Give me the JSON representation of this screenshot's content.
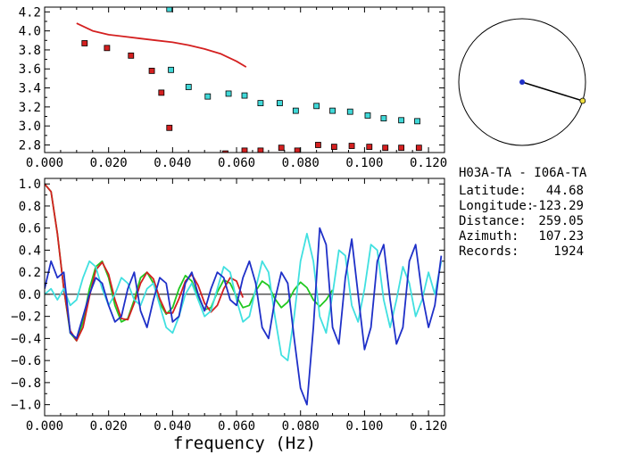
{
  "chart_data": [
    {
      "type": "scatter",
      "title": "",
      "xlabel": "",
      "ylabel": "",
      "xlim": [
        0,
        0.125
      ],
      "ylim": [
        2.72,
        4.25
      ],
      "grid": false,
      "x_ticks": [
        "0.000",
        "0.020",
        "0.040",
        "0.060",
        "0.080",
        "0.100",
        "0.120"
      ],
      "y_ticks": [
        "2.8",
        "3.0",
        "3.2",
        "3.4",
        "3.6",
        "3.8",
        "4.0",
        "4.2"
      ],
      "x_tick_values": [
        0,
        0.02,
        0.04,
        0.06,
        0.08,
        0.1,
        0.12
      ],
      "y_tick_values": [
        2.8,
        3.0,
        3.2,
        3.4,
        3.6,
        3.8,
        4.0,
        4.2
      ],
      "series": [
        {
          "color": "#d42020",
          "kind": "line",
          "x": [
            0.01,
            0.015,
            0.02,
            0.025,
            0.03,
            0.035,
            0.04,
            0.045,
            0.05,
            0.055,
            0.06,
            0.063
          ],
          "y": [
            4.08,
            4.0,
            3.96,
            3.94,
            3.92,
            3.9,
            3.88,
            3.85,
            3.81,
            3.76,
            3.68,
            3.62
          ]
        },
        {
          "color": "#d42020",
          "kind": "squares",
          "x": [
            0.0125,
            0.0195,
            0.027,
            0.0335,
            0.0365,
            0.039,
            0.0565,
            0.0625,
            0.0675,
            0.074,
            0.079,
            0.0855,
            0.0905,
            0.096,
            0.1015,
            0.1065,
            0.1115,
            0.117
          ],
          "y": [
            3.87,
            3.82,
            3.74,
            3.58,
            3.35,
            2.98,
            2.71,
            2.74,
            2.74,
            2.77,
            2.74,
            2.8,
            2.78,
            2.79,
            2.78,
            2.77,
            2.77,
            2.77
          ]
        },
        {
          "color": "#40d8d8",
          "kind": "squares",
          "x": [
            0.039,
            0.0395,
            0.045,
            0.051,
            0.0575,
            0.0625,
            0.0675,
            0.0735,
            0.0785,
            0.085,
            0.09,
            0.0955,
            0.101,
            0.106,
            0.1115,
            0.1165
          ],
          "y": [
            4.23,
            3.59,
            3.41,
            3.31,
            3.34,
            3.32,
            3.24,
            3.24,
            3.16,
            3.21,
            3.16,
            3.15,
            3.11,
            3.08,
            3.06,
            3.05
          ]
        }
      ]
    },
    {
      "type": "line",
      "title": "",
      "xlabel": "frequency (Hz)",
      "ylabel": "",
      "xlim": [
        0,
        0.125
      ],
      "ylim": [
        -1.1,
        1.05
      ],
      "grid": false,
      "x_ticks": [
        "0.000",
        "0.020",
        "0.040",
        "0.060",
        "0.080",
        "0.100",
        "0.120"
      ],
      "y_ticks": [
        "1.0",
        "0.8",
        "0.6",
        "0.4",
        "0.2",
        "0.0",
        "−0.2",
        "−0.4",
        "−0.6",
        "−0.8",
        "−1.0"
      ],
      "x_tick_values": [
        0,
        0.02,
        0.04,
        0.06,
        0.08,
        0.1,
        0.12
      ],
      "y_tick_values": [
        1.0,
        0.8,
        0.6,
        0.4,
        0.2,
        0.0,
        -0.2,
        -0.4,
        -0.6,
        -0.8,
        -1.0
      ],
      "zero_line": true,
      "series": [
        {
          "color": "#20c820",
          "x": [
            0,
            0.002,
            0.004,
            0.006,
            0.008,
            0.01,
            0.012,
            0.014,
            0.016,
            0.018,
            0.02,
            0.022,
            0.024,
            0.026,
            0.028,
            0.03,
            0.032,
            0.034,
            0.036,
            0.038,
            0.04,
            0.042,
            0.044,
            0.046,
            0.048,
            0.05,
            0.052,
            0.054,
            0.056,
            0.058,
            0.06,
            0.062,
            0.064,
            0.066,
            0.068,
            0.07,
            0.072,
            0.074,
            0.076,
            0.078,
            0.08,
            0.082,
            0.084,
            0.086,
            0.088,
            0.09
          ],
          "y": [
            1.0,
            0.93,
            0.55,
            0.05,
            -0.35,
            -0.42,
            -0.25,
            0.05,
            0.25,
            0.3,
            0.15,
            -0.1,
            -0.25,
            -0.22,
            -0.05,
            0.15,
            0.2,
            0.1,
            -0.08,
            -0.18,
            -0.12,
            0.05,
            0.17,
            0.12,
            -0.02,
            -0.14,
            -0.12,
            0.02,
            0.13,
            0.1,
            -0.02,
            -0.12,
            -0.1,
            0.03,
            0.12,
            0.08,
            -0.04,
            -0.12,
            -0.07,
            0.04,
            0.11,
            0.06,
            -0.05,
            -0.11,
            -0.05,
            0.04
          ]
        },
        {
          "color": "#d42020",
          "x": [
            0,
            0.002,
            0.004,
            0.006,
            0.008,
            0.01,
            0.012,
            0.014,
            0.016,
            0.018,
            0.02,
            0.022,
            0.024,
            0.026,
            0.028,
            0.03,
            0.032,
            0.034,
            0.036,
            0.038,
            0.04,
            0.042,
            0.044,
            0.046,
            0.048,
            0.05,
            0.052,
            0.054,
            0.056,
            0.058,
            0.06,
            0.062
          ],
          "y": [
            1.0,
            0.93,
            0.55,
            0.05,
            -0.33,
            -0.42,
            -0.3,
            -0.02,
            0.22,
            0.29,
            0.18,
            -0.05,
            -0.22,
            -0.23,
            -0.08,
            0.1,
            0.2,
            0.14,
            -0.04,
            -0.17,
            -0.17,
            -0.04,
            0.12,
            0.18,
            0.08,
            -0.08,
            -0.16,
            -0.1,
            0.05,
            0.15,
            0.12,
            -0.03
          ]
        },
        {
          "color": "#40e0e0",
          "x": [
            0,
            0.002,
            0.004,
            0.006,
            0.008,
            0.01,
            0.012,
            0.014,
            0.016,
            0.018,
            0.02,
            0.022,
            0.024,
            0.026,
            0.028,
            0.03,
            0.032,
            0.034,
            0.036,
            0.038,
            0.04,
            0.042,
            0.044,
            0.046,
            0.048,
            0.05,
            0.052,
            0.054,
            0.056,
            0.058,
            0.06,
            0.062,
            0.064,
            0.066,
            0.068,
            0.07,
            0.072,
            0.074,
            0.076,
            0.078,
            0.08,
            0.082,
            0.084,
            0.086,
            0.088,
            0.09,
            0.092,
            0.094,
            0.096,
            0.098,
            0.1,
            0.102,
            0.104,
            0.106,
            0.108,
            0.11,
            0.112,
            0.114,
            0.116,
            0.118,
            0.12,
            0.122,
            0.124
          ],
          "y": [
            0.0,
            0.05,
            -0.05,
            0.05,
            -0.1,
            -0.05,
            0.15,
            0.3,
            0.25,
            0.05,
            -0.1,
            0.0,
            0.15,
            0.1,
            -0.05,
            -0.1,
            0.05,
            0.1,
            -0.1,
            -0.3,
            -0.35,
            -0.2,
            0.0,
            0.1,
            -0.05,
            -0.2,
            -0.15,
            0.05,
            0.25,
            0.2,
            -0.05,
            -0.25,
            -0.2,
            0.05,
            0.3,
            0.2,
            -0.2,
            -0.55,
            -0.6,
            -0.2,
            0.3,
            0.55,
            0.3,
            -0.2,
            -0.35,
            0.0,
            0.4,
            0.35,
            -0.1,
            -0.25,
            0.05,
            0.45,
            0.4,
            -0.05,
            -0.3,
            -0.05,
            0.25,
            0.1,
            -0.2,
            -0.05,
            0.2,
            0.0,
            0.3
          ]
        },
        {
          "color": "#1f30c8",
          "x": [
            0,
            0.002,
            0.004,
            0.006,
            0.008,
            0.01,
            0.012,
            0.014,
            0.016,
            0.018,
            0.02,
            0.022,
            0.024,
            0.026,
            0.028,
            0.03,
            0.032,
            0.034,
            0.036,
            0.038,
            0.04,
            0.042,
            0.044,
            0.046,
            0.048,
            0.05,
            0.052,
            0.054,
            0.056,
            0.058,
            0.06,
            0.062,
            0.064,
            0.066,
            0.068,
            0.07,
            0.072,
            0.074,
            0.076,
            0.078,
            0.08,
            0.082,
            0.084,
            0.086,
            0.088,
            0.09,
            0.092,
            0.094,
            0.096,
            0.098,
            0.1,
            0.102,
            0.104,
            0.106,
            0.108,
            0.11,
            0.112,
            0.114,
            0.116,
            0.118,
            0.12,
            0.122,
            0.124
          ],
          "y": [
            0.05,
            0.3,
            0.15,
            0.2,
            -0.35,
            -0.4,
            -0.2,
            0.0,
            0.15,
            0.1,
            -0.1,
            -0.25,
            -0.2,
            0.05,
            0.2,
            -0.15,
            -0.3,
            -0.05,
            0.15,
            0.1,
            -0.25,
            -0.2,
            0.1,
            0.2,
            0.0,
            -0.15,
            0.05,
            0.2,
            0.15,
            -0.05,
            -0.1,
            0.15,
            0.3,
            0.1,
            -0.3,
            -0.4,
            -0.05,
            0.2,
            0.1,
            -0.4,
            -0.85,
            -1.0,
            -0.3,
            0.6,
            0.45,
            -0.3,
            -0.45,
            0.15,
            0.5,
            0.0,
            -0.5,
            -0.3,
            0.3,
            0.45,
            -0.05,
            -0.45,
            -0.3,
            0.3,
            0.45,
            0.0,
            -0.3,
            -0.1,
            0.35
          ]
        }
      ]
    }
  ],
  "polar": {
    "azimuth_deg": 107.23,
    "center_color": "#1f30c8",
    "end_color": "#f0e040"
  },
  "info": {
    "pair": "H03A-TA  - I06A-TA",
    "rows": [
      {
        "label": "Latitude:",
        "value": "44.68"
      },
      {
        "label": "Longitude:",
        "value": "-123.29"
      },
      {
        "label": "Distance:",
        "value": "259.05"
      },
      {
        "label": "Azimuth:",
        "value": "107.23"
      },
      {
        "label": "Records:",
        "value": "1924"
      }
    ]
  }
}
